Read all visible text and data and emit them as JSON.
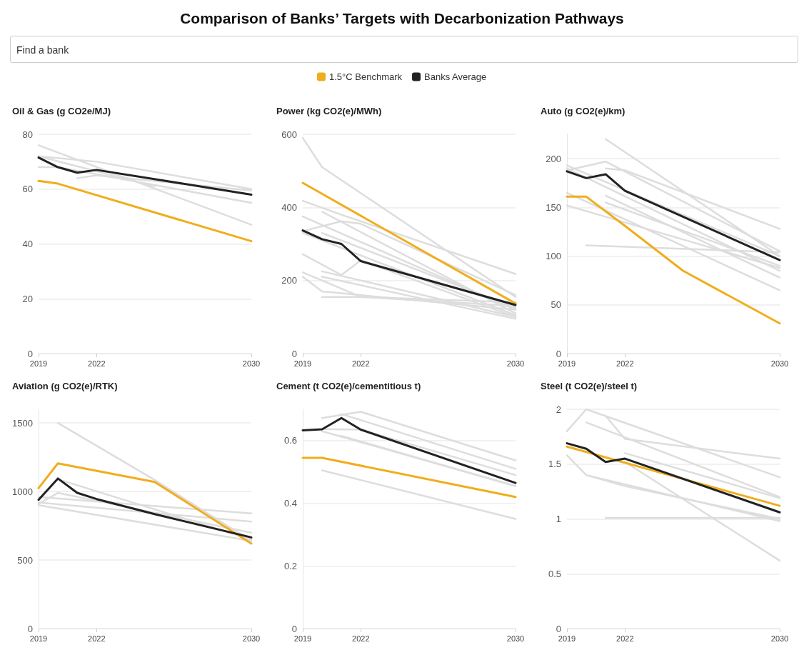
{
  "chart_data": [
    {
      "type": "other",
      "title": "Comparison of Banks’ Targets with Decarbonization Pathways",
      "annotations": [
        "Find a bank"
      ]
    },
    {
      "type": "line",
      "title": "Oil & Gas (g CO2e/MJ)",
      "xlim": [
        2019,
        2030
      ],
      "xticks": [
        2019,
        2022,
        2030
      ],
      "ylim": [
        0,
        80
      ],
      "yticks": [
        0,
        20,
        40,
        60,
        80
      ],
      "grid": "y",
      "legend": "top",
      "series": [
        {
          "name": "1.5°C Benchmark",
          "color": "#f0ad1c",
          "x": [
            2019,
            2020,
            2030
          ],
          "values": [
            63,
            62,
            41
          ]
        },
        {
          "name": "Banks Average",
          "color": "#222222",
          "x": [
            2019,
            2020,
            2021,
            2022,
            2030
          ],
          "values": [
            71.5,
            68,
            66,
            67,
            58
          ]
        },
        {
          "color": "#dddddd",
          "x": [
            2019,
            2030
          ],
          "values": [
            76,
            47
          ]
        },
        {
          "color": "#dddddd",
          "x": [
            2019,
            2022,
            2030
          ],
          "values": [
            72,
            70,
            60
          ]
        },
        {
          "color": "#dddddd",
          "x": [
            2019,
            2025
          ],
          "values": [
            72,
            61
          ]
        },
        {
          "color": "#dddddd",
          "x": [
            2019,
            2020,
            2030
          ],
          "values": [
            68,
            68,
            55
          ]
        },
        {
          "color": "#dddddd",
          "x": [
            2021,
            2022,
            2030
          ],
          "values": [
            64,
            65,
            59.5
          ]
        }
      ]
    },
    {
      "type": "line",
      "title": "Power (kg CO2(e)/MWh)",
      "xlim": [
        2019,
        2030
      ],
      "xticks": [
        2019,
        2022,
        2030
      ],
      "ylim": [
        0,
        600
      ],
      "yticks": [
        0,
        200,
        400,
        600
      ],
      "grid": "y",
      "series": [
        {
          "color": "#f0ad1c",
          "x": [
            2019,
            2030
          ],
          "values": [
            467,
            137
          ]
        },
        {
          "color": "#222222",
          "x": [
            2019,
            2020,
            2021,
            2022,
            2030
          ],
          "values": [
            337,
            313,
            300,
            253,
            133
          ]
        },
        {
          "color": "#dddddd",
          "x": [
            2019,
            2020,
            2030
          ],
          "values": [
            590,
            510,
            155
          ]
        },
        {
          "color": "#dddddd",
          "x": [
            2019,
            2021,
            2030
          ],
          "values": [
            418,
            380,
            218
          ]
        },
        {
          "color": "#dddddd",
          "x": [
            2020,
            2030
          ],
          "values": [
            388,
            110
          ]
        },
        {
          "color": "#dddddd",
          "x": [
            2019,
            2030
          ],
          "values": [
            375,
            120
          ]
        },
        {
          "color": "#dddddd",
          "x": [
            2019,
            2021,
            2022,
            2030
          ],
          "values": [
            335,
            362,
            355,
            160
          ]
        },
        {
          "color": "#dddddd",
          "x": [
            2020,
            2030
          ],
          "values": [
            330,
            125
          ]
        },
        {
          "color": "#dddddd",
          "x": [
            2019,
            2030
          ],
          "values": [
            330,
            105
          ]
        },
        {
          "color": "#dddddd",
          "x": [
            2019,
            2021,
            2022,
            2030
          ],
          "values": [
            272,
            215,
            255,
            100
          ]
        },
        {
          "color": "#dddddd",
          "x": [
            2019,
            2020,
            2022,
            2030
          ],
          "values": [
            222,
            200,
            155,
            140
          ]
        },
        {
          "color": "#dddddd",
          "x": [
            2019,
            2020,
            2030
          ],
          "values": [
            210,
            170,
            120
          ]
        },
        {
          "color": "#dddddd",
          "x": [
            2020,
            2030
          ],
          "values": [
            225,
            100
          ]
        },
        {
          "color": "#dddddd",
          "x": [
            2020,
            2022,
            2030
          ],
          "values": [
            155,
            155,
            130
          ]
        },
        {
          "color": "#dddddd",
          "x": [
            2020,
            2030
          ],
          "values": [
            210,
            95
          ]
        }
      ]
    },
    {
      "type": "line",
      "title": "Auto (g CO2(e)/km)",
      "xlim": [
        2019,
        2030
      ],
      "xticks": [
        2019,
        2022,
        2030
      ],
      "ylim": [
        0,
        225
      ],
      "yticks": [
        0,
        50,
        100,
        150,
        200
      ],
      "grid": "y",
      "series": [
        {
          "color": "#f0ad1c",
          "x": [
            2019,
            2020,
            2022,
            2025,
            2030
          ],
          "values": [
            161,
            161,
            131,
            85,
            31
          ]
        },
        {
          "color": "#222222",
          "x": [
            2019,
            2020,
            2021,
            2022,
            2030
          ],
          "values": [
            187,
            180,
            184,
            167,
            96
          ]
        },
        {
          "color": "#dddddd",
          "x": [
            2021,
            2030
          ],
          "values": [
            220,
            100
          ]
        },
        {
          "color": "#dddddd",
          "x": [
            2019,
            2030
          ],
          "values": [
            193,
            100
          ]
        },
        {
          "color": "#dddddd",
          "x": [
            2019,
            2021,
            2030
          ],
          "values": [
            188,
            197,
            105
          ]
        },
        {
          "color": "#dddddd",
          "x": [
            2021,
            2022,
            2030
          ],
          "values": [
            190,
            188,
            128
          ]
        },
        {
          "color": "#dddddd",
          "x": [
            2019,
            2030
          ],
          "values": [
            190,
            85
          ]
        },
        {
          "color": "#dddddd",
          "x": [
            2021,
            2030
          ],
          "values": [
            162,
            78
          ]
        },
        {
          "color": "#dddddd",
          "x": [
            2019,
            2030
          ],
          "values": [
            165,
            65
          ]
        },
        {
          "color": "#dddddd",
          "x": [
            2021,
            2030
          ],
          "values": [
            155,
            90
          ]
        },
        {
          "color": "#dddddd",
          "x": [
            2019,
            2030
          ],
          "values": [
            152,
            88
          ]
        },
        {
          "color": "#dddddd",
          "x": [
            2020,
            2030
          ],
          "values": [
            111,
            104
          ]
        }
      ]
    },
    {
      "type": "line",
      "title": "Aviation (g CO2(e)/RTK)",
      "xlim": [
        2019,
        2030
      ],
      "xticks": [
        2019,
        2022,
        2030
      ],
      "ylim": [
        0,
        1600
      ],
      "yticks": [
        0,
        500,
        1000,
        1500
      ],
      "grid": "y",
      "series": [
        {
          "color": "#f0ad1c",
          "x": [
            2019,
            2020,
            2025,
            2030
          ],
          "values": [
            1025,
            1205,
            1070,
            620
          ]
        },
        {
          "color": "#222222",
          "x": [
            2019,
            2020,
            2021,
            2022,
            2025,
            2030
          ],
          "values": [
            940,
            1095,
            990,
            945,
            835,
            665
          ]
        },
        {
          "color": "#dddddd",
          "x": [
            2020,
            2025,
            2030
          ],
          "values": [
            1500,
            1085,
            640
          ]
        },
        {
          "color": "#dddddd",
          "x": [
            2019,
            2020,
            2030
          ],
          "values": [
            910,
            990,
            700
          ]
        },
        {
          "color": "#dddddd",
          "x": [
            2019,
            2030
          ],
          "values": [
            960,
            840
          ]
        },
        {
          "color": "#dddddd",
          "x": [
            2019,
            2030
          ],
          "values": [
            920,
            780
          ]
        },
        {
          "color": "#dddddd",
          "x": [
            2019,
            2030
          ],
          "values": [
            900,
            640
          ]
        },
        {
          "color": "#dddddd",
          "x": [
            2020,
            2030
          ],
          "values": [
            1090,
            650
          ]
        }
      ]
    },
    {
      "type": "line",
      "title": "Cement (t CO2(e)/cementitious t)",
      "xlim": [
        2019,
        2030
      ],
      "xticks": [
        2019,
        2022,
        2030
      ],
      "ylim": [
        0,
        0.7
      ],
      "yticks": [
        0,
        0.2,
        0.4,
        0.6
      ],
      "grid": "y",
      "series": [
        {
          "color": "#f0ad1c",
          "x": [
            2019,
            2020,
            2030
          ],
          "values": [
            0.545,
            0.545,
            0.42
          ]
        },
        {
          "color": "#222222",
          "x": [
            2019,
            2020,
            2021,
            2022,
            2030
          ],
          "values": [
            0.633,
            0.636,
            0.672,
            0.635,
            0.465
          ]
        },
        {
          "color": "#dddddd",
          "x": [
            2020,
            2022,
            2030
          ],
          "values": [
            0.672,
            0.692,
            0.537
          ]
        },
        {
          "color": "#dddddd",
          "x": [
            2021,
            2030
          ],
          "values": [
            0.685,
            0.51
          ]
        },
        {
          "color": "#dddddd",
          "x": [
            2020,
            2022,
            2030
          ],
          "values": [
            0.637,
            0.635,
            0.49
          ]
        },
        {
          "color": "#dddddd",
          "x": [
            2020,
            2030
          ],
          "values": [
            0.63,
            0.455
          ]
        },
        {
          "color": "#dddddd",
          "x": [
            2021,
            2030
          ],
          "values": [
            0.615,
            0.455
          ]
        },
        {
          "color": "#dddddd",
          "x": [
            2020,
            2030
          ],
          "values": [
            0.505,
            0.35
          ]
        }
      ]
    },
    {
      "type": "line",
      "title": "Steel (t CO2(e)/steel t)",
      "xlim": [
        2019,
        2030
      ],
      "xticks": [
        2019,
        2022,
        2030
      ],
      "ylim": [
        0,
        2
      ],
      "yticks": [
        0,
        0.5,
        1,
        1.5,
        2
      ],
      "grid": "y",
      "series": [
        {
          "color": "#f0ad1c",
          "x": [
            2019,
            2030
          ],
          "values": [
            1.66,
            1.12
          ]
        },
        {
          "color": "#222222",
          "x": [
            2019,
            2020,
            2021,
            2022,
            2030
          ],
          "values": [
            1.69,
            1.64,
            1.52,
            1.55,
            1.06
          ]
        },
        {
          "color": "#dddddd",
          "x": [
            2019,
            2020,
            2030
          ],
          "values": [
            1.8,
            2.0,
            1.38
          ]
        },
        {
          "color": "#dddddd",
          "x": [
            2020,
            2030
          ],
          "values": [
            1.88,
            1.2
          ]
        },
        {
          "color": "#dddddd",
          "x": [
            2021,
            2022,
            2030
          ],
          "values": [
            1.94,
            1.73,
            1.55
          ]
        },
        {
          "color": "#dddddd",
          "x": [
            2022,
            2030
          ],
          "values": [
            1.52,
            0.62
          ]
        },
        {
          "color": "#dddddd",
          "x": [
            2022,
            2030
          ],
          "values": [
            1.6,
            1.19
          ]
        },
        {
          "color": "#dddddd",
          "x": [
            2019,
            2020,
            2030
          ],
          "values": [
            1.58,
            1.4,
            0.98
          ]
        },
        {
          "color": "#dddddd",
          "x": [
            2020,
            2022,
            2030
          ],
          "values": [
            1.4,
            1.3,
            1.0
          ]
        },
        {
          "color": "#dddddd",
          "x": [
            2021,
            2030
          ],
          "values": [
            1.01,
            1.01
          ]
        }
      ]
    }
  ]
}
